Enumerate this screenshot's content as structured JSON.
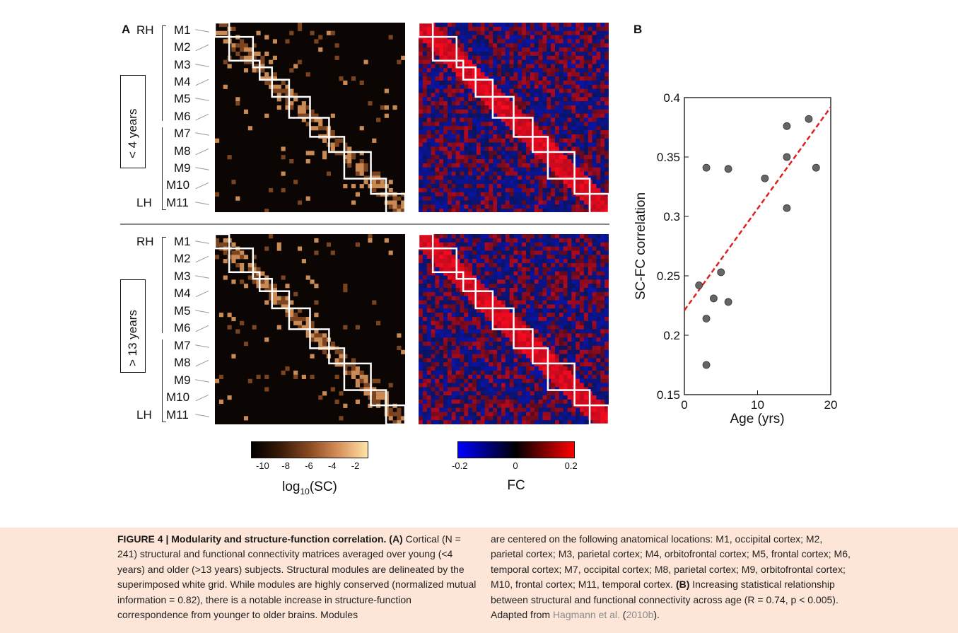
{
  "figure": {
    "panel_a_letter": "A",
    "panel_b_letter": "B",
    "hemisphere_right": "RH",
    "hemisphere_left": "LH",
    "modules": [
      "M1",
      "M2",
      "M3",
      "M4",
      "M5",
      "M6",
      "M7",
      "M8",
      "M9",
      "M10",
      "M11"
    ],
    "row_young": "< 4 years",
    "row_old": "> 13 years",
    "colorbar_sc": {
      "ticks": [
        "-10",
        "-8",
        "-6",
        "-4",
        "-2"
      ],
      "title_base": "log",
      "title_sub": "10",
      "title_rest": "(SC)",
      "colors": [
        "#000000",
        "#3a1a08",
        "#8a4a20",
        "#d8905a",
        "#ffe3a8"
      ]
    },
    "colorbar_fc": {
      "ticks": [
        "-0.2",
        "0",
        "0.2"
      ],
      "title": "FC",
      "colors": [
        "#0000ff",
        "#000000",
        "#ff0000"
      ]
    }
  },
  "chart_data": {
    "type": "scatter",
    "xlabel": "Age (yrs)",
    "ylabel": "SC-FC correlation",
    "xlim": [
      0,
      20
    ],
    "ylim": [
      0.15,
      0.4
    ],
    "xticks": [
      "0",
      "10",
      "20"
    ],
    "yticks": [
      "0.15",
      "0.2",
      "0.25",
      "0.3",
      "0.35",
      "0.4"
    ],
    "point_color": "#666666",
    "fit_color": "#e02020",
    "points": [
      {
        "x": 2,
        "y": 0.242
      },
      {
        "x": 3,
        "y": 0.341
      },
      {
        "x": 3,
        "y": 0.214
      },
      {
        "x": 3,
        "y": 0.175
      },
      {
        "x": 4,
        "y": 0.231
      },
      {
        "x": 5,
        "y": 0.253
      },
      {
        "x": 6,
        "y": 0.34
      },
      {
        "x": 6,
        "y": 0.228
      },
      {
        "x": 11,
        "y": 0.332
      },
      {
        "x": 14,
        "y": 0.376
      },
      {
        "x": 14,
        "y": 0.35
      },
      {
        "x": 14,
        "y": 0.307
      },
      {
        "x": 17,
        "y": 0.382
      },
      {
        "x": 18,
        "y": 0.341
      }
    ],
    "fit_line": [
      {
        "x": 0,
        "y": 0.221
      },
      {
        "x": 20,
        "y": 0.392
      }
    ]
  },
  "caption": {
    "col1": {
      "bold_lead": "FIGURE 4 | Modularity and structure-function correlation. (A)",
      "text": " Cortical (N = 241) structural and functional connectivity matrices averaged over young (<4 years) and older (>13 years) subjects. Structural modules are delineated by the superimposed white grid. While modules are highly conserved (normalized mutual information = 0.82), there is a notable increase in structure-function correspondence from younger to older brains. Modules"
    },
    "col2": {
      "text_before_b": "are centered on the following anatomical locations: M1, occipital cortex; M2, parietal cortex; M3, parietal cortex; M4, orbitofrontal cortex; M5, frontal cortex; M6, temporal cortex; M7, occipital cortex; M8, parietal cortex; M9, orbitofrontal cortex; M10, frontal cortex; M11, temporal cortex. ",
      "bold_b": "(B)",
      "text_after_b": " Increasing statistical relationship between structural and functional connectivity across age (R = 0.74, p < 0.005). Adapted from ",
      "citation_name": "Hagmann et al.",
      "citation_year": "2010b",
      "text_end": ")."
    }
  }
}
